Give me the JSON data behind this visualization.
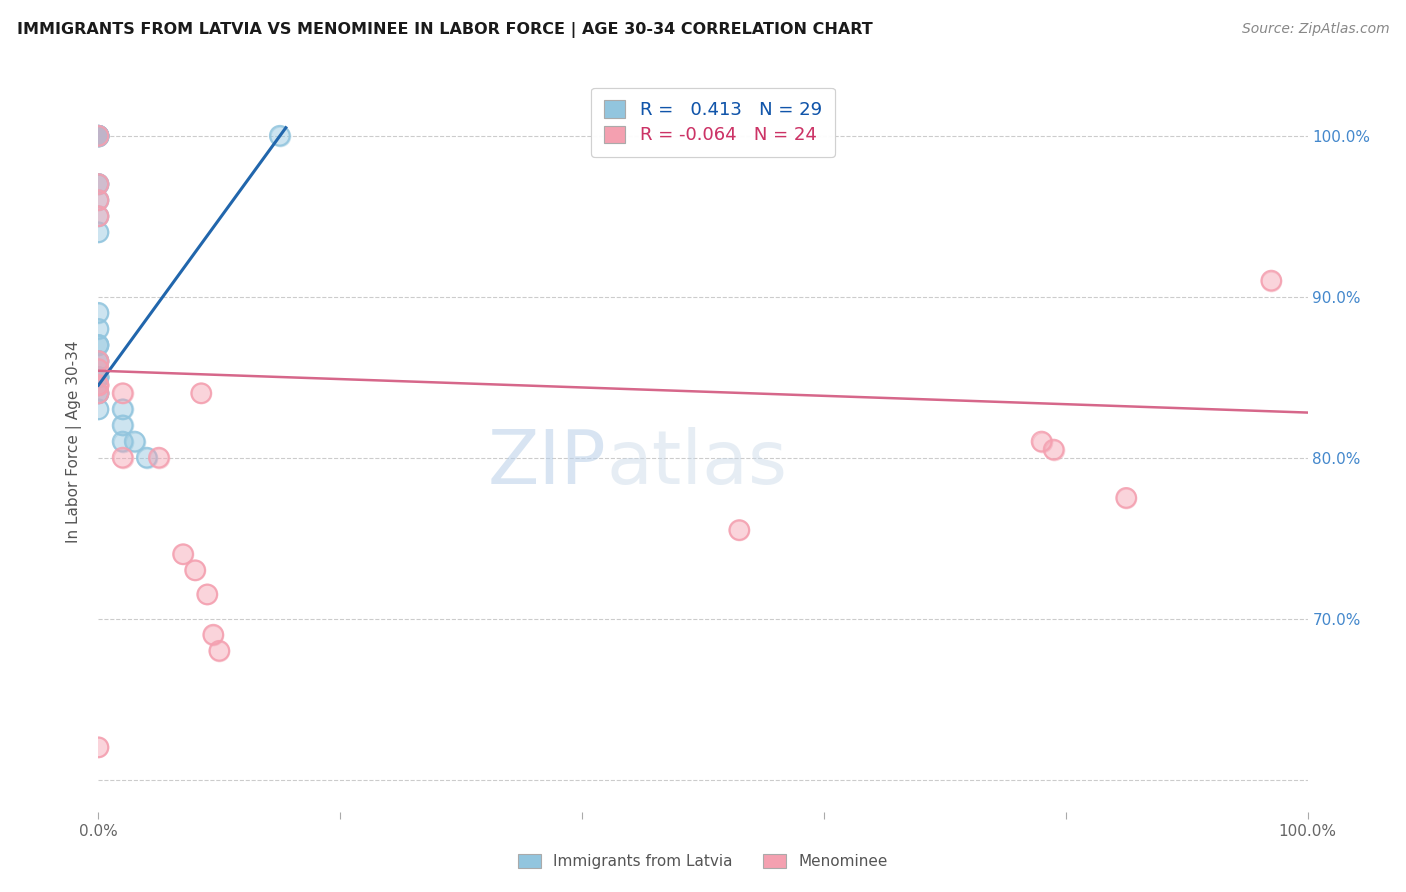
{
  "title": "IMMIGRANTS FROM LATVIA VS MENOMINEE IN LABOR FORCE | AGE 30-34 CORRELATION CHART",
  "source": "Source: ZipAtlas.com",
  "ylabel": "In Labor Force | Age 30-34",
  "xlim": [
    0.0,
    1.0
  ],
  "ylim": [
    0.58,
    1.04
  ],
  "x_ticks": [
    0.0,
    0.2,
    0.4,
    0.6,
    0.8,
    1.0
  ],
  "x_tick_labels": [
    "0.0%",
    "",
    "",
    "",
    "",
    "100.0%"
  ],
  "y_ticks": [
    0.6,
    0.7,
    0.8,
    0.9,
    1.0
  ],
  "y_tick_labels": [
    "",
    "70.0%",
    "80.0%",
    "90.0%",
    "100.0%"
  ],
  "blue_R": 0.413,
  "blue_N": 29,
  "pink_R": -0.064,
  "pink_N": 24,
  "blue_color": "#92c5de",
  "pink_color": "#f4a0b0",
  "blue_line_color": "#2166ac",
  "pink_line_color": "#d6678a",
  "watermark_zip": "ZIP",
  "watermark_atlas": "atlas",
  "legend_label_blue": "Immigrants from Latvia",
  "legend_label_pink": "Menominee",
  "blue_x": [
    0.0,
    0.0,
    0.0,
    0.0,
    0.0,
    0.0,
    0.0,
    0.0,
    0.0,
    0.0,
    0.0,
    0.0,
    0.0,
    0.0,
    0.0,
    0.0,
    0.0,
    0.0,
    0.0,
    0.0,
    0.0,
    0.02,
    0.02,
    0.02,
    0.03,
    0.04,
    0.0,
    0.0,
    0.15
  ],
  "blue_y": [
    1.0,
    1.0,
    1.0,
    1.0,
    1.0,
    1.0,
    0.97,
    0.97,
    0.96,
    0.95,
    0.94,
    0.89,
    0.88,
    0.87,
    0.87,
    0.86,
    0.86,
    0.85,
    0.85,
    0.84,
    0.83,
    0.83,
    0.82,
    0.81,
    0.81,
    0.8,
    0.85,
    0.84,
    1.0
  ],
  "pink_x": [
    0.0,
    0.0,
    0.0,
    0.0,
    0.0,
    0.02,
    0.02,
    0.05,
    0.07,
    0.08,
    0.085,
    0.09,
    0.095,
    0.1,
    0.53,
    0.78,
    0.79,
    0.85,
    0.97,
    0.0,
    0.0,
    0.0,
    0.0,
    0.0
  ],
  "pink_y": [
    1.0,
    0.97,
    0.96,
    0.95,
    0.84,
    0.84,
    0.8,
    0.8,
    0.74,
    0.73,
    0.84,
    0.715,
    0.69,
    0.68,
    0.755,
    0.81,
    0.805,
    0.775,
    0.91,
    0.62,
    0.845,
    0.845,
    0.855,
    0.86
  ],
  "blue_trend_x0": 0.0,
  "blue_trend_y0": 0.845,
  "blue_trend_x1": 0.155,
  "blue_trend_y1": 1.005,
  "pink_trend_x0": 0.0,
  "pink_trend_y0": 0.854,
  "pink_trend_x1": 1.0,
  "pink_trend_y1": 0.828
}
